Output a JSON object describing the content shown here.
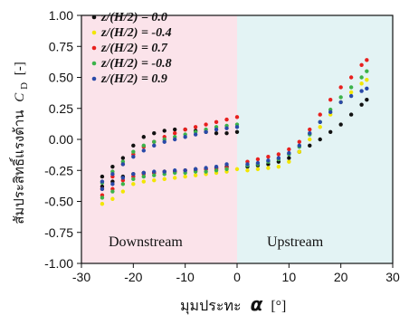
{
  "chart_data": {
    "type": "scatter",
    "xlim": [
      -30,
      30
    ],
    "ylim": [
      -1.0,
      1.0
    ],
    "x_ticks": [
      "-30",
      "-20",
      "-10",
      "0",
      "10",
      "20",
      "30"
    ],
    "y_ticks": [
      "1.00",
      "0.75",
      "0.50",
      "0.25",
      "0.00",
      "-0.25",
      "-0.50",
      "-0.75",
      "-1.00"
    ],
    "xlabel": "มุมประทะ",
    "xlabel_symbol": "α",
    "xlabel_unit": "[°]",
    "ylabel": "สัมประสิทธิ์แรงต้าน",
    "ylabel_symbol": "C",
    "ylabel_subscript": "D",
    "ylabel_unit": "[-]",
    "region_labels": [
      "Downstream",
      "Upstream"
    ],
    "region_colors": [
      "#fbe3ea",
      "#e3f3f4"
    ],
    "legend_position": "top-left",
    "series": [
      {
        "name": "z/(H/2) = 0.0",
        "color": "#111111",
        "x": [
          -26,
          -24,
          -22,
          -20,
          -18,
          -16,
          -14,
          -12,
          -10,
          -8,
          -6,
          -4,
          -2,
          0,
          2,
          4,
          6,
          8,
          10,
          12,
          14,
          16,
          18,
          20,
          22,
          24,
          25,
          -26,
          -24,
          -22,
          -20,
          -18,
          -16,
          -14,
          -12,
          -10,
          -8,
          -6,
          -4,
          -2
        ],
        "y": [
          -0.3,
          -0.22,
          -0.15,
          -0.05,
          0.02,
          0.05,
          0.07,
          0.08,
          0.08,
          0.07,
          0.06,
          0.05,
          0.05,
          0.06,
          -0.22,
          -0.21,
          -0.2,
          -0.18,
          -0.15,
          -0.1,
          -0.05,
          0.0,
          0.06,
          0.12,
          0.2,
          0.28,
          0.32,
          -0.38,
          -0.34,
          -0.3,
          -0.28,
          -0.27,
          -0.27,
          -0.26,
          -0.26,
          -0.25,
          -0.24,
          -0.24,
          -0.23,
          -0.22
        ]
      },
      {
        "name": "z/(H/2) = -0.4",
        "color": "#f2e600",
        "x": [
          -26,
          -24,
          -22,
          -20,
          -18,
          -16,
          -14,
          -12,
          -10,
          -8,
          -6,
          -4,
          -2,
          0,
          2,
          4,
          6,
          8,
          10,
          12,
          14,
          16,
          18,
          20,
          22,
          24,
          25
        ],
        "y": [
          -0.52,
          -0.48,
          -0.42,
          -0.36,
          -0.34,
          -0.33,
          -0.32,
          -0.31,
          -0.3,
          -0.29,
          -0.28,
          -0.27,
          -0.26,
          -0.24,
          -0.25,
          -0.24,
          -0.23,
          -0.22,
          -0.18,
          -0.1,
          0.0,
          0.1,
          0.2,
          0.3,
          0.38,
          0.45,
          0.48
        ]
      },
      {
        "name": "z/(H/2) = 0.7",
        "color": "#e8201e",
        "x": [
          -26,
          -24,
          -22,
          -20,
          -18,
          -16,
          -14,
          -12,
          -10,
          -8,
          -6,
          -4,
          -2,
          0,
          2,
          4,
          6,
          8,
          10,
          12,
          14,
          16,
          18,
          20,
          22,
          24,
          25,
          -26,
          -24,
          -22,
          -20,
          -18,
          -16,
          -14,
          -12,
          -10,
          -8,
          -6,
          -4,
          -2
        ],
        "y": [
          -0.4,
          -0.3,
          -0.2,
          -0.12,
          -0.06,
          -0.02,
          0.02,
          0.05,
          0.08,
          0.1,
          0.12,
          0.14,
          0.16,
          0.18,
          -0.18,
          -0.16,
          -0.14,
          -0.12,
          -0.08,
          -0.02,
          0.08,
          0.2,
          0.32,
          0.42,
          0.5,
          0.6,
          0.64,
          -0.45,
          -0.4,
          -0.33,
          -0.3,
          -0.28,
          -0.27,
          -0.26,
          -0.26,
          -0.25,
          -0.25,
          -0.24,
          -0.24,
          -0.23
        ]
      },
      {
        "name": "z/(H/2) = -0.8",
        "color": "#3cb34a",
        "x": [
          -26,
          -24,
          -22,
          -20,
          -18,
          -16,
          -14,
          -12,
          -10,
          -8,
          -6,
          -4,
          -2,
          0,
          2,
          4,
          6,
          8,
          10,
          12,
          14,
          16,
          18,
          20,
          22,
          24,
          25,
          -26,
          -24,
          -22,
          -20,
          -18,
          -16,
          -14,
          -12,
          -10,
          -8,
          -6,
          -4,
          -2
        ],
        "y": [
          -0.35,
          -0.26,
          -0.18,
          -0.1,
          -0.05,
          -0.02,
          0.0,
          0.02,
          0.04,
          0.06,
          0.08,
          0.1,
          0.11,
          0.12,
          -0.21,
          -0.2,
          -0.18,
          -0.16,
          -0.12,
          -0.06,
          0.04,
          0.14,
          0.24,
          0.34,
          0.42,
          0.5,
          0.55,
          -0.47,
          -0.42,
          -0.36,
          -0.32,
          -0.3,
          -0.29,
          -0.28,
          -0.27,
          -0.27,
          -0.26,
          -0.26,
          -0.25,
          -0.24
        ]
      },
      {
        "name": "z/(H/2) = 0.9",
        "color": "#2a4aa8",
        "x": [
          -26,
          -24,
          -22,
          -20,
          -18,
          -16,
          -14,
          -12,
          -10,
          -8,
          -6,
          -4,
          -2,
          0,
          2,
          4,
          6,
          8,
          10,
          12,
          14,
          16,
          18,
          20,
          22,
          24,
          25,
          -26,
          -24,
          -22,
          -20,
          -18,
          -16,
          -14,
          -12,
          -10,
          -8,
          -6,
          -4,
          -2
        ],
        "y": [
          -0.34,
          -0.28,
          -0.2,
          -0.14,
          -0.09,
          -0.05,
          -0.02,
          0.0,
          0.02,
          0.04,
          0.06,
          0.08,
          0.09,
          0.1,
          -0.2,
          -0.19,
          -0.17,
          -0.15,
          -0.11,
          -0.05,
          0.05,
          0.14,
          0.22,
          0.3,
          0.35,
          0.39,
          0.41,
          -0.4,
          -0.36,
          -0.31,
          -0.28,
          -0.27,
          -0.26,
          -0.26,
          -0.25,
          -0.25,
          -0.24,
          -0.23,
          -0.22,
          -0.2
        ]
      }
    ]
  }
}
